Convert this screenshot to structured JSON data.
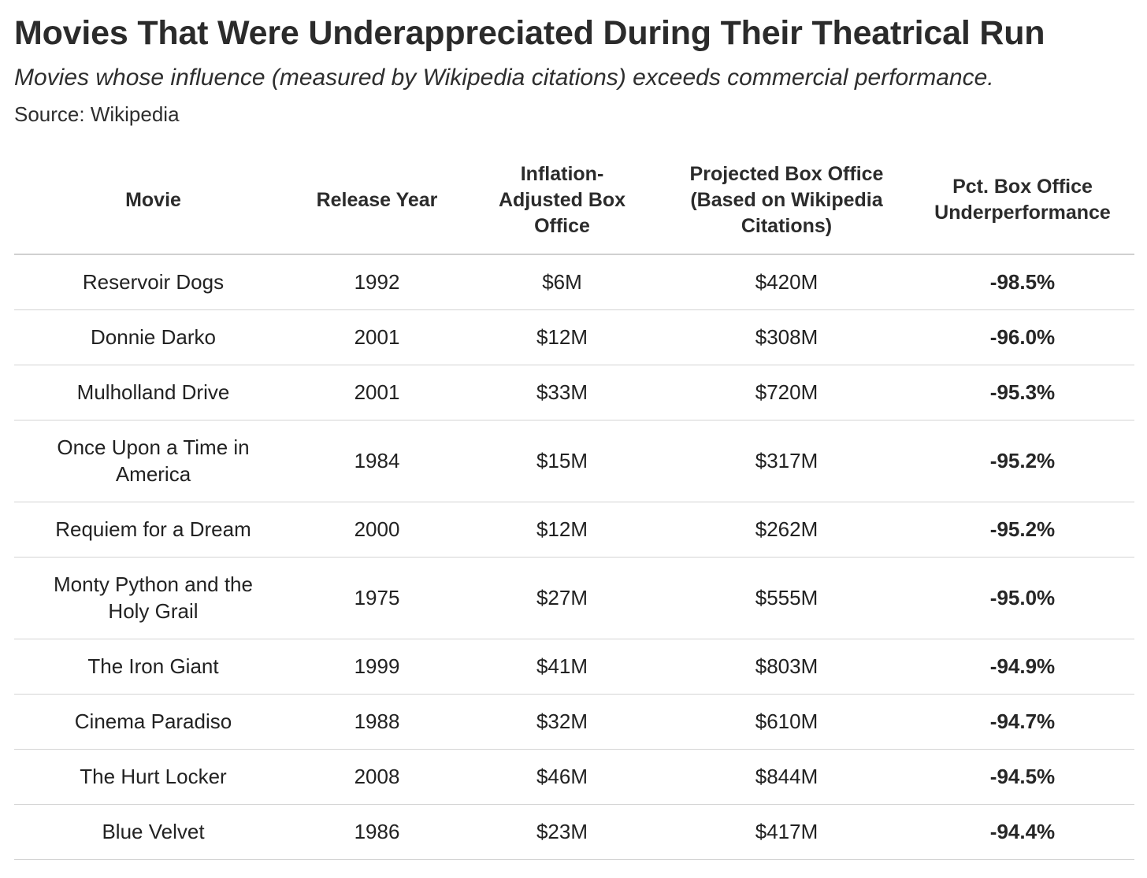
{
  "title": "Movies That Were Underappreciated During Their Theatrical Run",
  "subtitle": "Movies whose influence (measured by Wikipedia citations) exceeds commercial performance.",
  "source": "Source: Wikipedia",
  "chart_data": {
    "type": "table",
    "columns": [
      "Movie",
      "Release Year",
      "Inflation-Adjusted Box Office",
      "Projected Box Office (Based on Wikipedia Citations)",
      "Pct. Box Office Underperformance"
    ],
    "rows": [
      [
        "Reservoir Dogs",
        "1992",
        "$6M",
        "$420M",
        "-98.5%"
      ],
      [
        "Donnie Darko",
        "2001",
        "$12M",
        "$308M",
        "-96.0%"
      ],
      [
        "Mulholland Drive",
        "2001",
        "$33M",
        "$720M",
        "-95.3%"
      ],
      [
        "Once Upon a Time in America",
        "1984",
        "$15M",
        "$317M",
        "-95.2%"
      ],
      [
        "Requiem for a Dream",
        "2000",
        "$12M",
        "$262M",
        "-95.2%"
      ],
      [
        "Monty Python and the Holy Grail",
        "1975",
        "$27M",
        "$555M",
        "-95.0%"
      ],
      [
        "The Iron Giant",
        "1999",
        "$41M",
        "$803M",
        "-94.9%"
      ],
      [
        "Cinema Paradiso",
        "1988",
        "$32M",
        "$610M",
        "-94.7%"
      ],
      [
        "The Hurt Locker",
        "2008",
        "$46M",
        "$844M",
        "-94.5%"
      ],
      [
        "Blue Velvet",
        "1986",
        "$23M",
        "$417M",
        "-94.4%"
      ]
    ]
  }
}
